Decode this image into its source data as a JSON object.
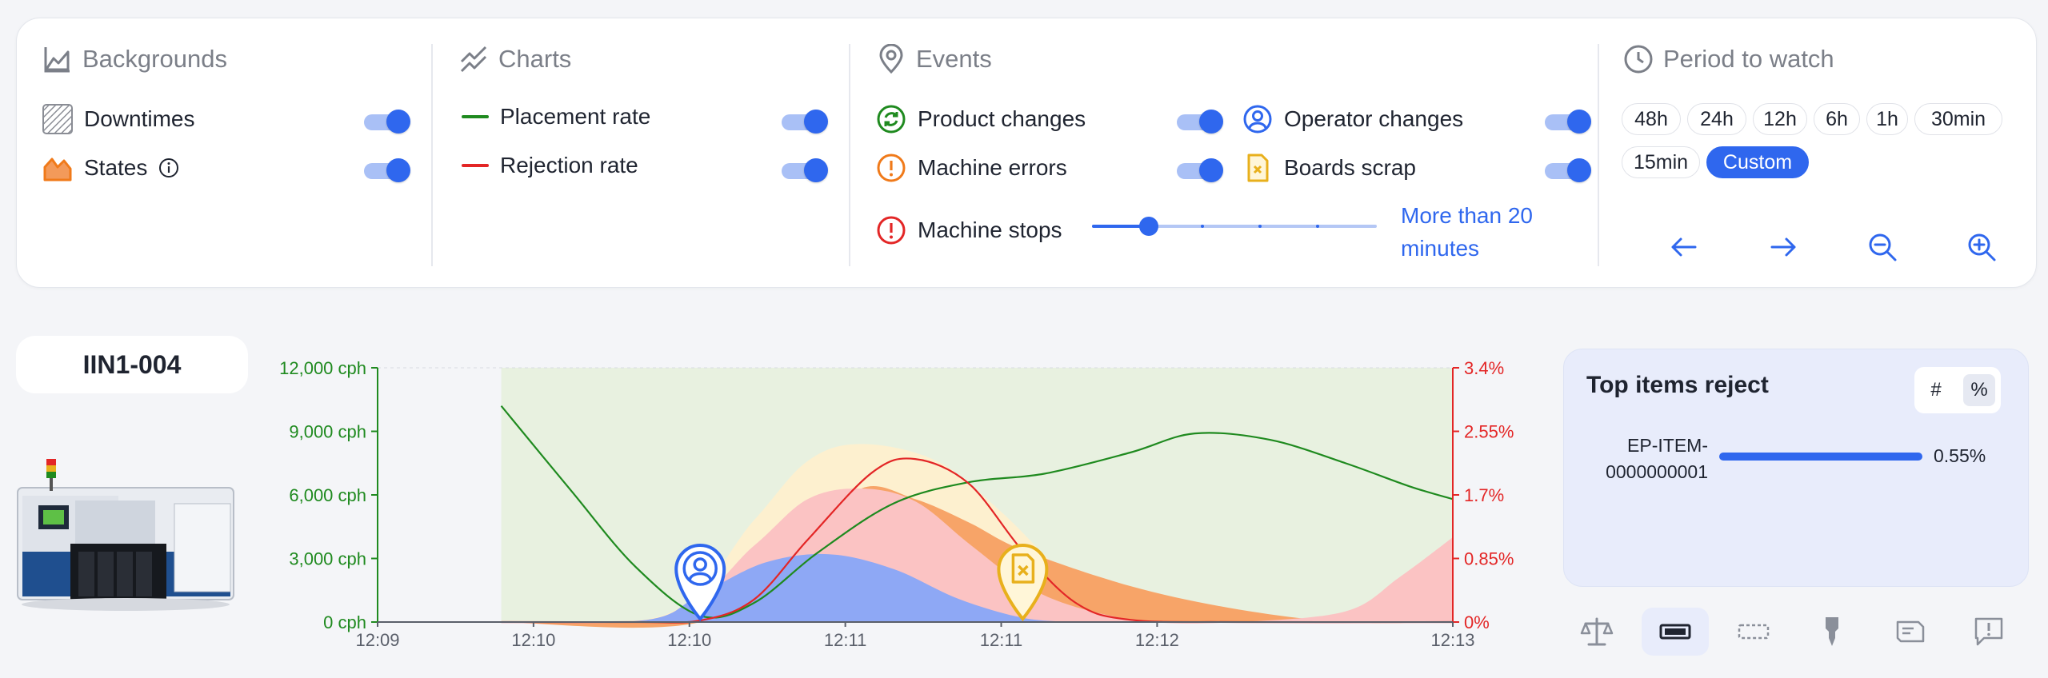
{
  "filters": {
    "backgrounds": {
      "title": "Backgrounds",
      "items": [
        {
          "label": "Downtimes",
          "enabled": true
        },
        {
          "label": "States",
          "enabled": true
        }
      ]
    },
    "charts": {
      "title": "Charts",
      "items": [
        {
          "label": "Placement rate",
          "color": "#1f8a1f",
          "enabled": true
        },
        {
          "label": "Rejection rate",
          "color": "#e32626",
          "enabled": true
        }
      ]
    },
    "events": {
      "title": "Events",
      "items": [
        {
          "label": "Product changes",
          "icon": "refresh-circle-icon",
          "color": "#1f8a1f",
          "enabled": true
        },
        {
          "label": "Operator changes",
          "icon": "user-circle-icon",
          "color": "#2f67ee",
          "enabled": true
        },
        {
          "label": "Machine errors",
          "icon": "exclamation-circle-icon",
          "color": "#f07a1a",
          "enabled": true
        },
        {
          "label": "Boards scrap",
          "icon": "scrap-file-icon",
          "color": "#e8b01c",
          "enabled": true
        }
      ],
      "machine_stops": {
        "label": "Machine stops",
        "threshold_text": "More than 20 minutes",
        "slider_position": 0.2
      }
    },
    "period": {
      "title": "Period to watch",
      "options": [
        "48h",
        "24h",
        "12h",
        "6h",
        "1h",
        "30min",
        "15min",
        "Custom"
      ],
      "active": "Custom"
    }
  },
  "machine": {
    "name": "IIN1-004"
  },
  "chart_data": {
    "type": "line",
    "x_ticks": [
      "12:09",
      "12:10",
      "12:10",
      "12:11",
      "12:11",
      "12:12",
      "12:13"
    ],
    "y_left": {
      "ticks": [
        "12,000 cph",
        "9,000 cph",
        "6,000 cph",
        "3,000 cph",
        "0 cph"
      ],
      "range": [
        0,
        12000
      ],
      "color": "#1f8a1f"
    },
    "y_right": {
      "ticks": [
        "3.4%",
        "2.55%",
        "1.7%",
        "0.85%",
        "0%"
      ],
      "range": [
        0,
        3.4
      ],
      "color": "#e32626"
    },
    "series": [
      {
        "name": "Placement rate",
        "axis": "left",
        "color": "#1f8a1f",
        "x": [
          0.115,
          0.18,
          0.24,
          0.3,
          0.35,
          0.41,
          0.48,
          0.55,
          0.62,
          0.7,
          0.76,
          0.83,
          0.9,
          0.96,
          1.0
        ],
        "y": [
          10200,
          6200,
          2600,
          300,
          900,
          3300,
          5600,
          6600,
          7000,
          8000,
          8900,
          8600,
          7500,
          6400,
          5800
        ]
      },
      {
        "name": "Rejection rate",
        "axis": "right",
        "color": "#e32626",
        "x": [
          0.115,
          0.24,
          0.3,
          0.35,
          0.4,
          0.46,
          0.5,
          0.55,
          0.6,
          0.65,
          0.7,
          0.8,
          1.0
        ],
        "y": [
          0,
          0,
          0.02,
          0.3,
          1.1,
          2.0,
          2.18,
          1.85,
          0.95,
          0.25,
          0.03,
          0,
          0
        ]
      }
    ],
    "areas": [
      {
        "name": "area-cream",
        "color": "#fdf0cf",
        "x": [
          0.115,
          0.27,
          0.35,
          0.4,
          0.45,
          0.52,
          0.58,
          0.65,
          0.72
        ],
        "y": [
          0,
          400,
          4800,
          7600,
          8400,
          7600,
          5200,
          1800,
          0
        ]
      },
      {
        "name": "area-orange",
        "color": "#f7a468",
        "x": [
          0.115,
          0.3,
          0.4,
          0.45,
          0.5,
          0.55,
          0.6,
          0.7,
          0.8,
          0.9,
          1.0
        ],
        "y": [
          0,
          0,
          3600,
          6300,
          5800,
          4700,
          3400,
          1700,
          600,
          0,
          0
        ]
      },
      {
        "name": "area-pink",
        "color": "#fbc3c3",
        "x": [
          0.115,
          0.27,
          0.35,
          0.4,
          0.45,
          0.5,
          0.55,
          0.6,
          0.65,
          0.72,
          0.8,
          0.9,
          0.95,
          1.0
        ],
        "y": [
          0,
          300,
          3600,
          5800,
          6300,
          5700,
          3700,
          1800,
          700,
          0,
          0,
          500,
          2100,
          4000
        ]
      },
      {
        "name": "area-blue",
        "color": "#8ea8f5",
        "x": [
          0.115,
          0.25,
          0.3,
          0.36,
          0.42,
          0.48,
          0.54,
          0.6,
          0.65
        ],
        "y": [
          0,
          100,
          1300,
          2800,
          3200,
          2500,
          1100,
          200,
          0
        ]
      }
    ],
    "background_band": {
      "color": "#e8f1e0",
      "x_start": 0.115,
      "x_end": 1.0
    },
    "markers": [
      {
        "name": "operator-change-marker",
        "icon": "user-circle-icon",
        "color": "#2f67ee",
        "x": 0.3
      },
      {
        "name": "boards-scrap-marker",
        "icon": "scrap-file-icon",
        "color": "#e8b01c",
        "x": 0.6
      }
    ]
  },
  "reject_panel": {
    "title": "Top items reject",
    "toggle": [
      "#",
      "%"
    ],
    "active": "%",
    "items": [
      {
        "name": "EP-ITEM-0000000001",
        "name_line1": "EP-ITEM-",
        "name_line2": "0000000001",
        "value": "0.55%",
        "fraction": 1.0
      }
    ]
  },
  "bottom_tabs": [
    {
      "icon": "balance-icon",
      "active": false
    },
    {
      "icon": "feeder-icon",
      "active": true
    },
    {
      "icon": "tray-icon",
      "active": false
    },
    {
      "icon": "nozzle-icon",
      "active": false
    },
    {
      "icon": "board-icon",
      "active": false
    },
    {
      "icon": "message-alert-icon",
      "active": false
    }
  ]
}
